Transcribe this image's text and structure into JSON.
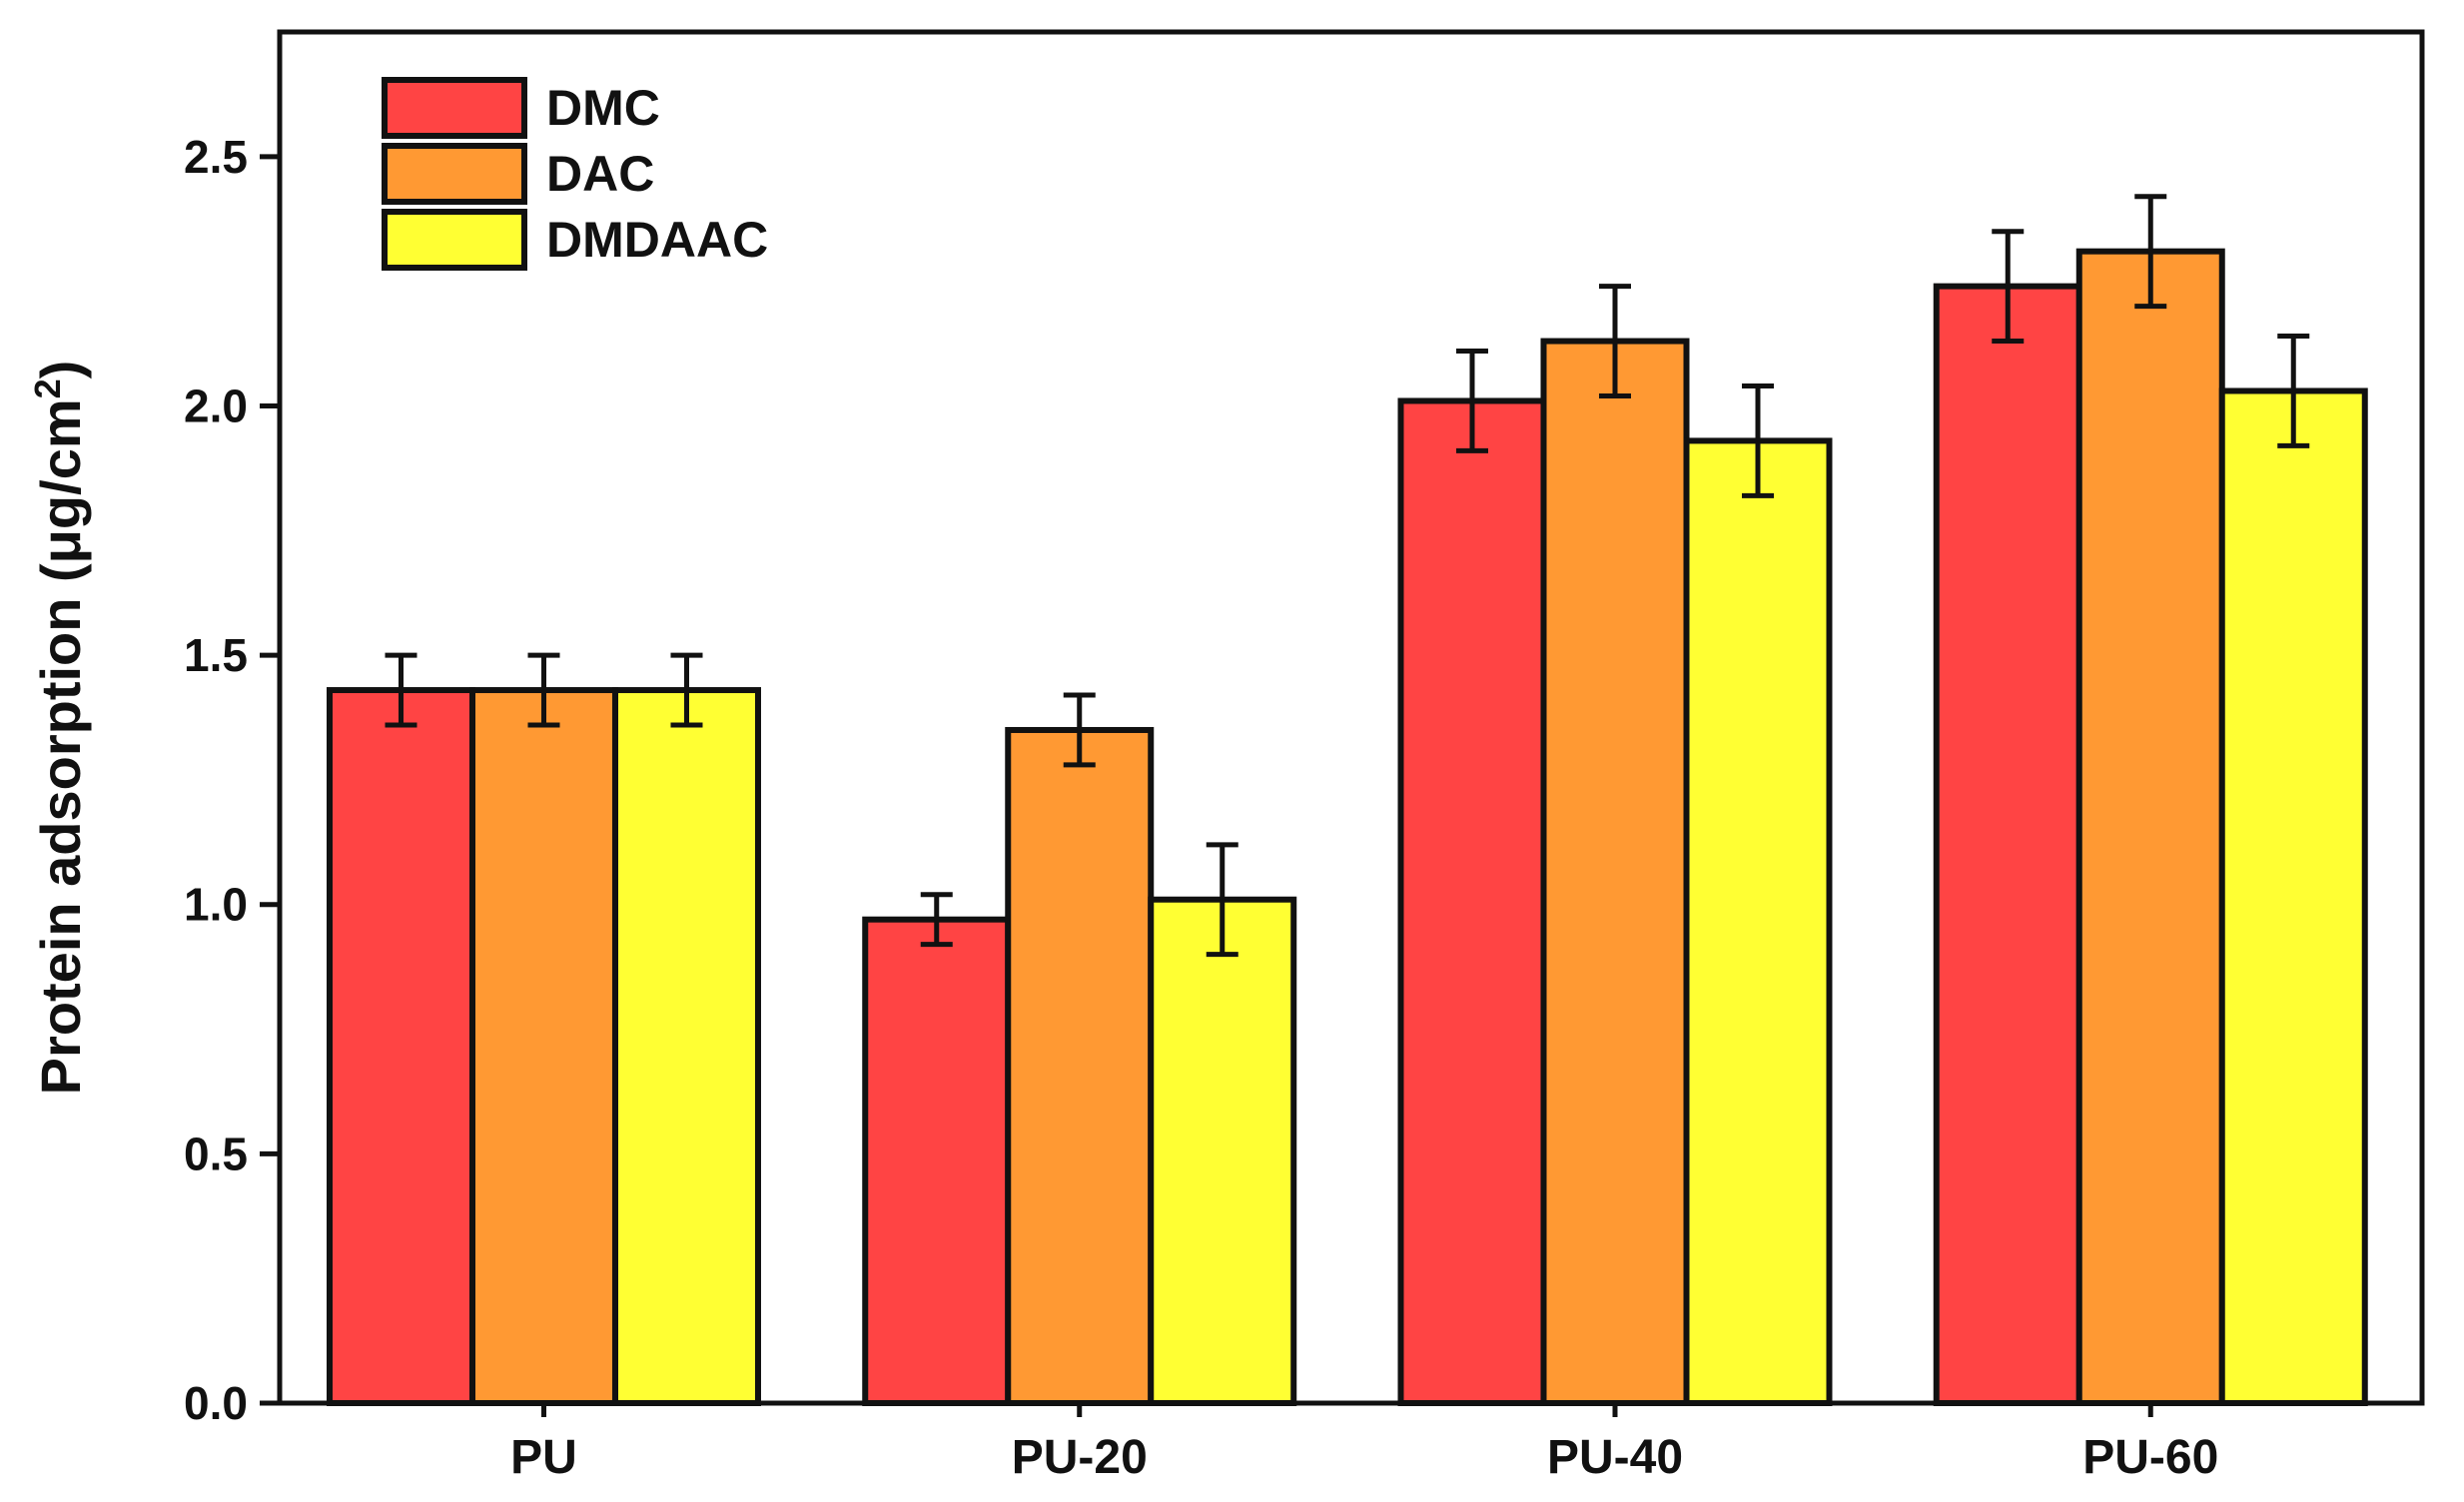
{
  "chart_data": {
    "type": "bar",
    "title": "",
    "xlabel": "",
    "ylabel": "Protein adsorption (μg/cm",
    "ylabel_sup": "2",
    "ylabel_close": ")",
    "ylim": [
      0,
      2.75
    ],
    "yticks": [
      0.0,
      0.5,
      1.0,
      1.5,
      2.0,
      2.5
    ],
    "ytick_labels": [
      "0.0",
      "0.5",
      "1.0",
      "1.5",
      "2.0",
      "2.5"
    ],
    "categories": [
      "PU",
      "PU-20",
      "PU-40",
      "PU-60"
    ],
    "series": [
      {
        "name": "DMC",
        "color": "#ff4444",
        "values": [
          1.43,
          0.97,
          2.01,
          2.24
        ],
        "errors": [
          0.07,
          0.05,
          0.1,
          0.11
        ]
      },
      {
        "name": "DAC",
        "color": "#ff9933",
        "values": [
          1.43,
          1.35,
          2.13,
          2.31
        ],
        "errors": [
          0.07,
          0.07,
          0.11,
          0.11
        ]
      },
      {
        "name": "DMDAAC",
        "color": "#ffff33",
        "values": [
          1.43,
          1.01,
          1.93,
          2.03
        ],
        "errors": [
          0.07,
          0.11,
          0.11,
          0.11
        ]
      }
    ],
    "legend_position": "top-left",
    "grid": false
  }
}
